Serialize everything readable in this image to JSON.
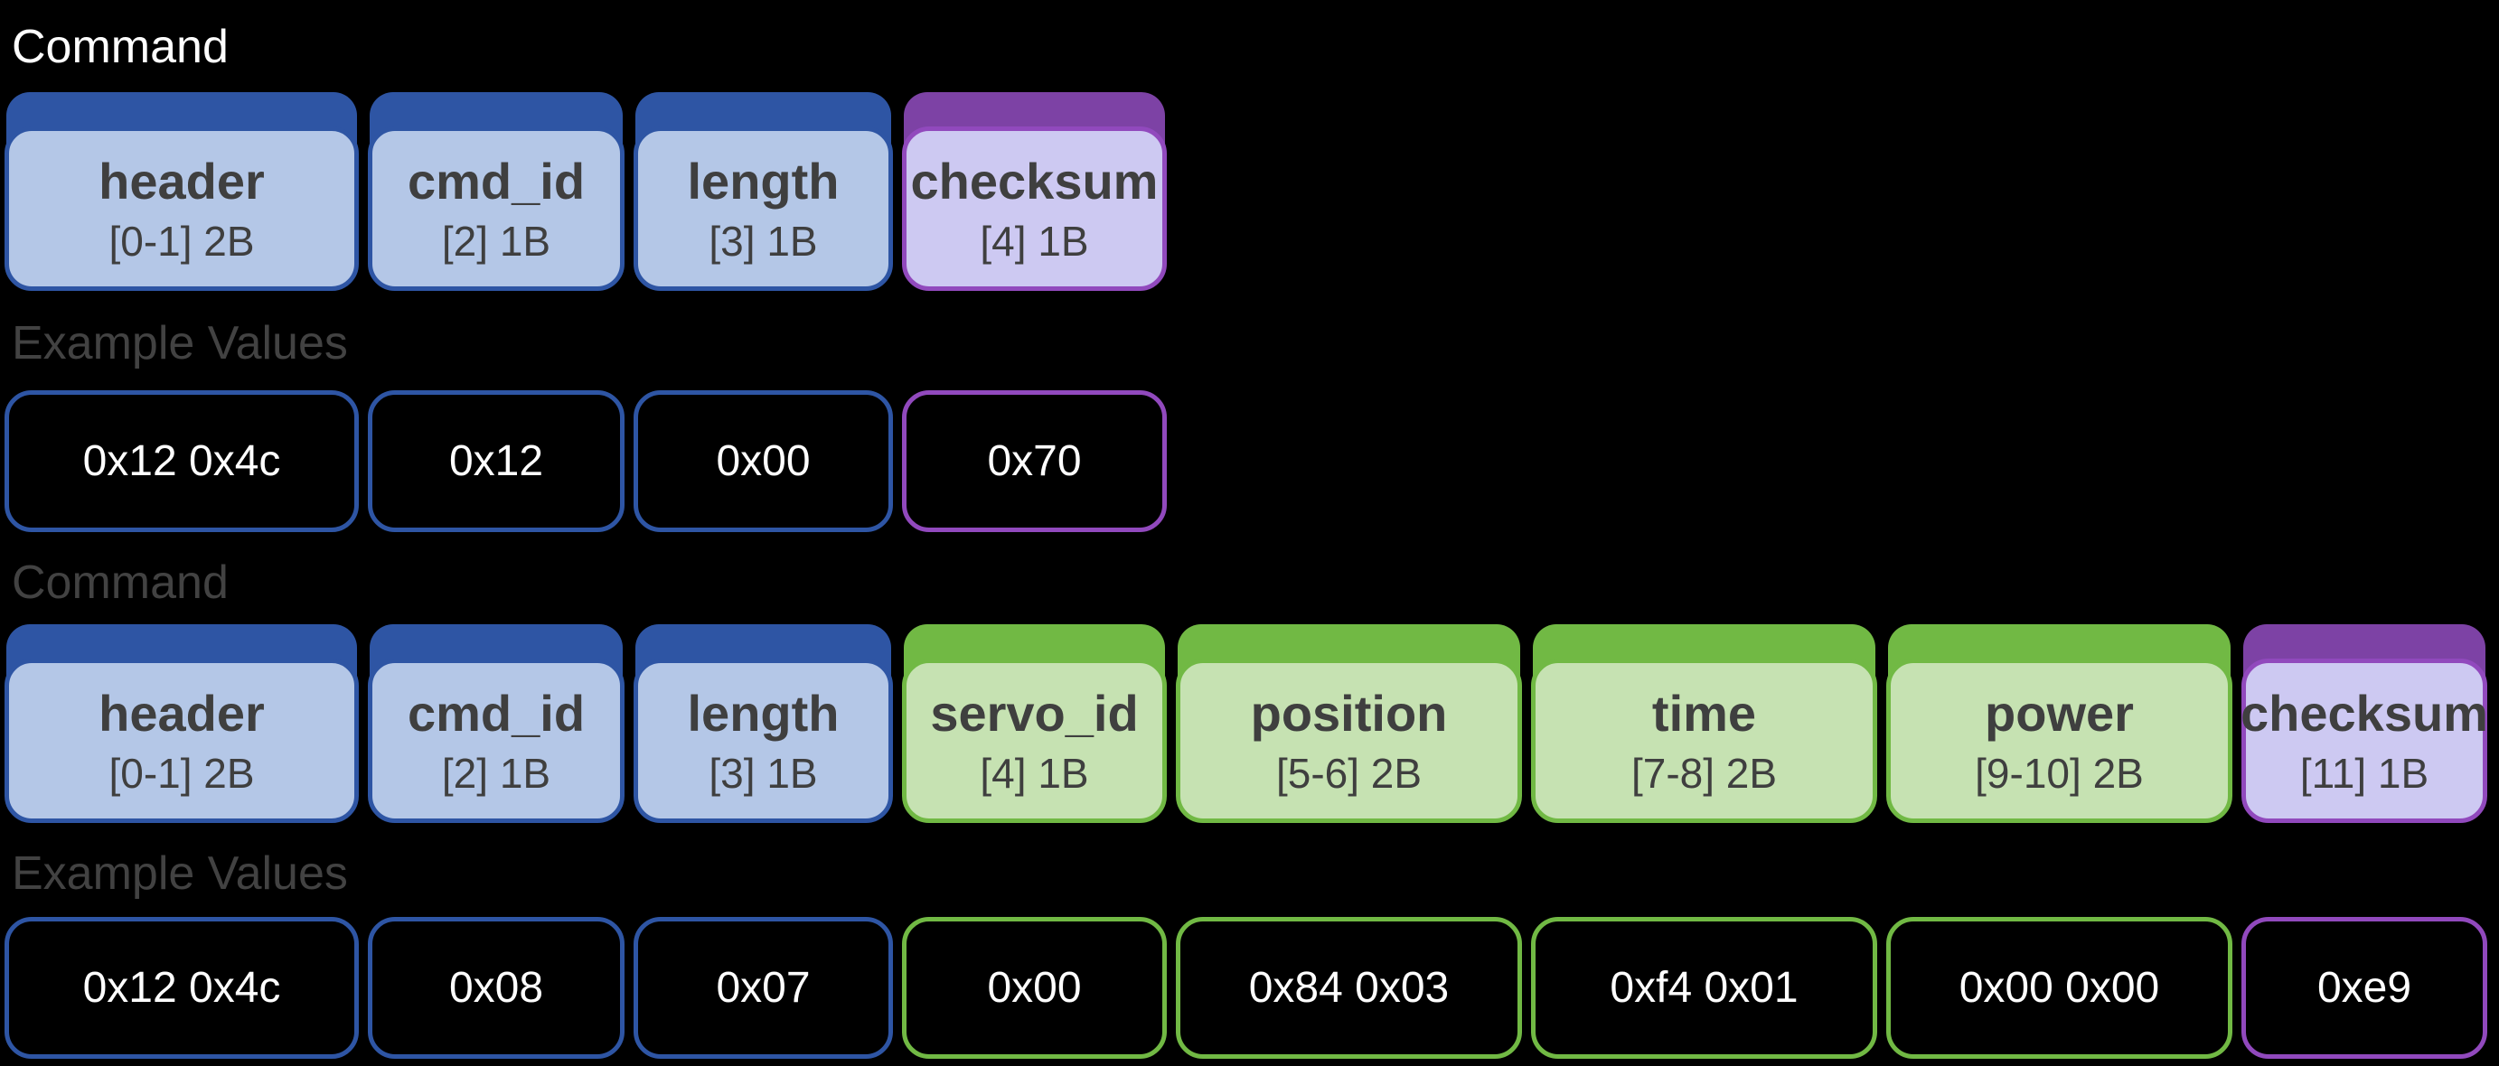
{
  "colors": {
    "background": "#000000",
    "blue_accent": "#2e55a4",
    "blue_fill": "#b4c7e7",
    "green_accent": "#71b944",
    "green_fill": "#c6e2b2",
    "purple_cap": "#7d42a5",
    "purple_border": "#9149bd",
    "purple_fill": "#cdc9f2",
    "box_label_text": "#3f3f3f",
    "muted_title_text": "#424242",
    "value_text": "#ffffff",
    "title1_text": "#ffffff"
  },
  "sections": [
    {
      "title": "Command",
      "example_label": "Example Values",
      "fields": [
        {
          "name": "header",
          "bytes": "[0-1] 2B",
          "value": "0x12 0x4c",
          "theme": "blue"
        },
        {
          "name": "cmd_id",
          "bytes": "[2] 1B",
          "value": "0x12",
          "theme": "blue"
        },
        {
          "name": "length",
          "bytes": "[3] 1B",
          "value": "0x00",
          "theme": "blue"
        },
        {
          "name": "checksum",
          "bytes": "[4] 1B",
          "value": "0x70",
          "theme": "purple"
        }
      ]
    },
    {
      "title": "Command",
      "example_label": "Example Values",
      "fields": [
        {
          "name": "header",
          "bytes": "[0-1] 2B",
          "value": "0x12 0x4c",
          "theme": "blue"
        },
        {
          "name": "cmd_id",
          "bytes": "[2] 1B",
          "value": "0x08",
          "theme": "blue"
        },
        {
          "name": "length",
          "bytes": "[3] 1B",
          "value": "0x07",
          "theme": "blue"
        },
        {
          "name": "servo_id",
          "bytes": "[4] 1B",
          "value": "0x00",
          "theme": "green"
        },
        {
          "name": "position",
          "bytes": "[5-6] 2B",
          "value": "0x84 0x03",
          "theme": "green"
        },
        {
          "name": "time",
          "bytes": "[7-8] 2B",
          "value": "0xf4 0x01",
          "theme": "green"
        },
        {
          "name": "power",
          "bytes": "[9-10] 2B",
          "value": "0x00 0x00",
          "theme": "green"
        },
        {
          "name": "checksum",
          "bytes": "[11] 1B",
          "value": "0xe9",
          "theme": "purple"
        }
      ]
    }
  ]
}
